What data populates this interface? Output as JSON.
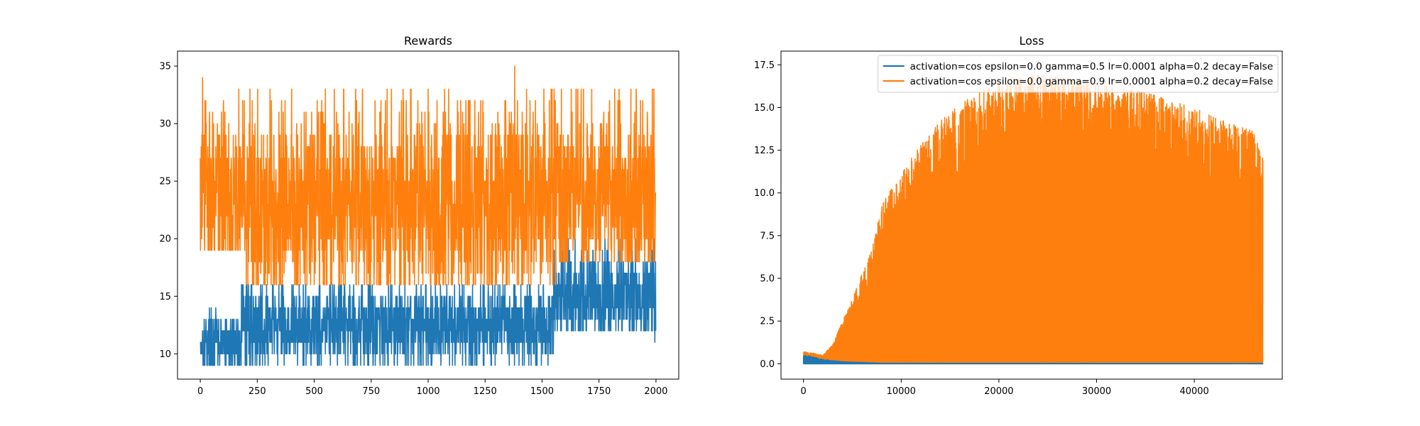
{
  "chart_data": [
    {
      "type": "line",
      "title": "Rewards",
      "xlabel": "",
      "ylabel": "",
      "xlim": [
        -100,
        2100
      ],
      "ylim": [
        7.8,
        36.3
      ],
      "xticks": [
        0,
        250,
        500,
        750,
        1000,
        1250,
        1500,
        1750,
        2000
      ],
      "yticks": [
        10,
        15,
        20,
        25,
        30,
        35
      ],
      "legend": null,
      "series": [
        {
          "color": "#1f77b4",
          "n_points": 2000,
          "segments": [
            {
              "x": [
                0,
                180
              ],
              "min": 9,
              "max": 14,
              "mean": 11
            },
            {
              "x": [
                180,
                1550
              ],
              "min": 9,
              "max": 16,
              "mean": 12.5
            },
            {
              "x": [
                1550,
                2000
              ],
              "min": 12,
              "max": 20,
              "mean": 15
            }
          ],
          "extremes": [
            {
              "x": 1000,
              "y": 9
            },
            {
              "x": 1600,
              "y": 20
            },
            {
              "x": 1990,
              "y": 20
            },
            {
              "x": 1995,
              "y": 11
            }
          ]
        },
        {
          "color": "#ff7f0e",
          "n_points": 2000,
          "segments": [
            {
              "x": [
                0,
                200
              ],
              "min": 19,
              "max": 34,
              "mean": 24
            },
            {
              "x": [
                200,
                1560
              ],
              "min": 16,
              "max": 33,
              "mean": 23
            },
            {
              "x": [
                1560,
                2000
              ],
              "min": 18,
              "max": 33,
              "mean": 24
            }
          ],
          "extremes": [
            {
              "x": 10,
              "y": 34
            },
            {
              "x": 1380,
              "y": 35
            },
            {
              "x": 540,
              "y": 16
            },
            {
              "x": 1000,
              "y": 33
            }
          ]
        }
      ]
    },
    {
      "type": "line",
      "title": "Loss",
      "xlabel": "",
      "ylabel": "",
      "xlim": [
        -2300,
        49000
      ],
      "ylim": [
        -0.9,
        18.3
      ],
      "xticks": [
        0,
        10000,
        20000,
        30000,
        40000
      ],
      "yticks": [
        0.0,
        2.5,
        5.0,
        7.5,
        10.0,
        12.5,
        15.0,
        17.5
      ],
      "legend": "upper right",
      "series": [
        {
          "name": "activation=cos epsilon=0.0 gamma=0.5 lr=0.0001 alpha=0.2 decay=False",
          "color": "#1f77b4",
          "envelope": [
            [
              0,
              0.5
            ],
            [
              1000,
              0.4
            ],
            [
              2000,
              0.25
            ],
            [
              4000,
              0.12
            ],
            [
              8000,
              0.03
            ],
            [
              47000,
              0.02
            ]
          ]
        },
        {
          "name": "activation=cos epsilon=0.0 gamma=0.9 lr=0.0001 alpha=0.2 decay=False",
          "color": "#ff7f0e",
          "envelope": [
            [
              0,
              0.7
            ],
            [
              1000,
              0.65
            ],
            [
              2000,
              0.5
            ],
            [
              3000,
              1.2
            ],
            [
              4000,
              2.5
            ],
            [
              5000,
              3.8
            ],
            [
              6000,
              5.3
            ],
            [
              7000,
              6.7
            ],
            [
              8000,
              9.3
            ],
            [
              10000,
              11.2
            ],
            [
              12000,
              12.8
            ],
            [
              14000,
              14.2
            ],
            [
              16000,
              15.2
            ],
            [
              18000,
              15.9
            ],
            [
              20000,
              16.4
            ],
            [
              22000,
              16.7
            ],
            [
              24000,
              16.9
            ],
            [
              26000,
              16.8
            ],
            [
              28000,
              16.6
            ],
            [
              30000,
              16.4
            ],
            [
              32000,
              16.1
            ],
            [
              34000,
              16.0
            ],
            [
              36000,
              15.7
            ],
            [
              38000,
              15.3
            ],
            [
              40000,
              15.0
            ],
            [
              42000,
              14.4
            ],
            [
              44000,
              14.0
            ],
            [
              46000,
              13.6
            ],
            [
              47000,
              12.2
            ]
          ],
          "min": 0.0
        }
      ]
    }
  ]
}
